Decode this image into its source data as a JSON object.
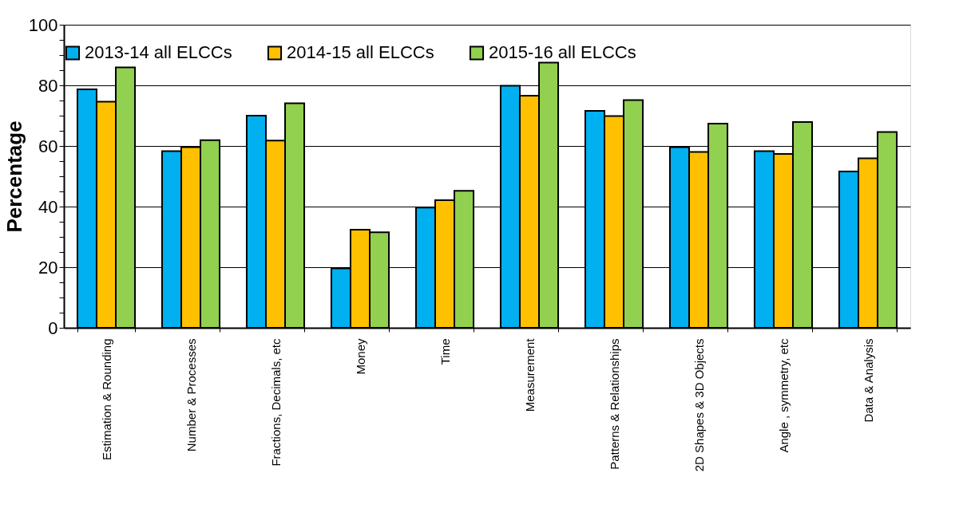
{
  "chart_data": {
    "type": "bar",
    "ylabel": "Percentage",
    "categories": [
      "Estimation & Rounding",
      "Number & Processes",
      "Fractions, Decimals, etc",
      "Money",
      "Time",
      "Measurement",
      "Patterns & Relationships",
      "2D Shapes & 3D Objects",
      "Angle , symmetry, etc",
      "Data & Analysis"
    ],
    "series": [
      {
        "name": "2013-14 all ELCCs",
        "color": "#00b0f0",
        "values": [
          78.7,
          58.3,
          70.0,
          19.6,
          39.7,
          79.9,
          71.6,
          59.6,
          58.3,
          51.6
        ]
      },
      {
        "name": "2014-15 all ELCCs",
        "color": "#ffc000",
        "values": [
          74.6,
          59.6,
          61.8,
          32.4,
          42.1,
          76.6,
          69.9,
          58.0,
          57.4,
          55.9
        ]
      },
      {
        "name": "2015-16 all ELCCs",
        "color": "#92d050",
        "values": [
          85.9,
          61.9,
          74.1,
          31.5,
          45.2,
          87.5,
          75.1,
          67.4,
          67.9,
          64.6
        ]
      }
    ],
    "ylim": [
      0,
      100
    ],
    "yticks": [
      0,
      {
        "value": 5,
        "label": null
      },
      {
        "value": 10,
        "label": null
      },
      {
        "value": 15,
        "label": null
      },
      20,
      {
        "value": 25,
        "label": null
      },
      {
        "value": 30,
        "label": null
      },
      {
        "value": 35,
        "label": null
      },
      40,
      {
        "value": 45,
        "label": null
      },
      {
        "value": 50,
        "label": null
      },
      {
        "value": 55,
        "label": null
      },
      60,
      {
        "value": 65,
        "label": null
      },
      {
        "value": 70,
        "label": null
      },
      {
        "value": 75,
        "label": null
      },
      80,
      {
        "value": 85,
        "label": null
      },
      {
        "value": 90,
        "label": null
      },
      {
        "value": 95,
        "label": null
      },
      100
    ],
    "grid": "y",
    "legend": "top"
  }
}
